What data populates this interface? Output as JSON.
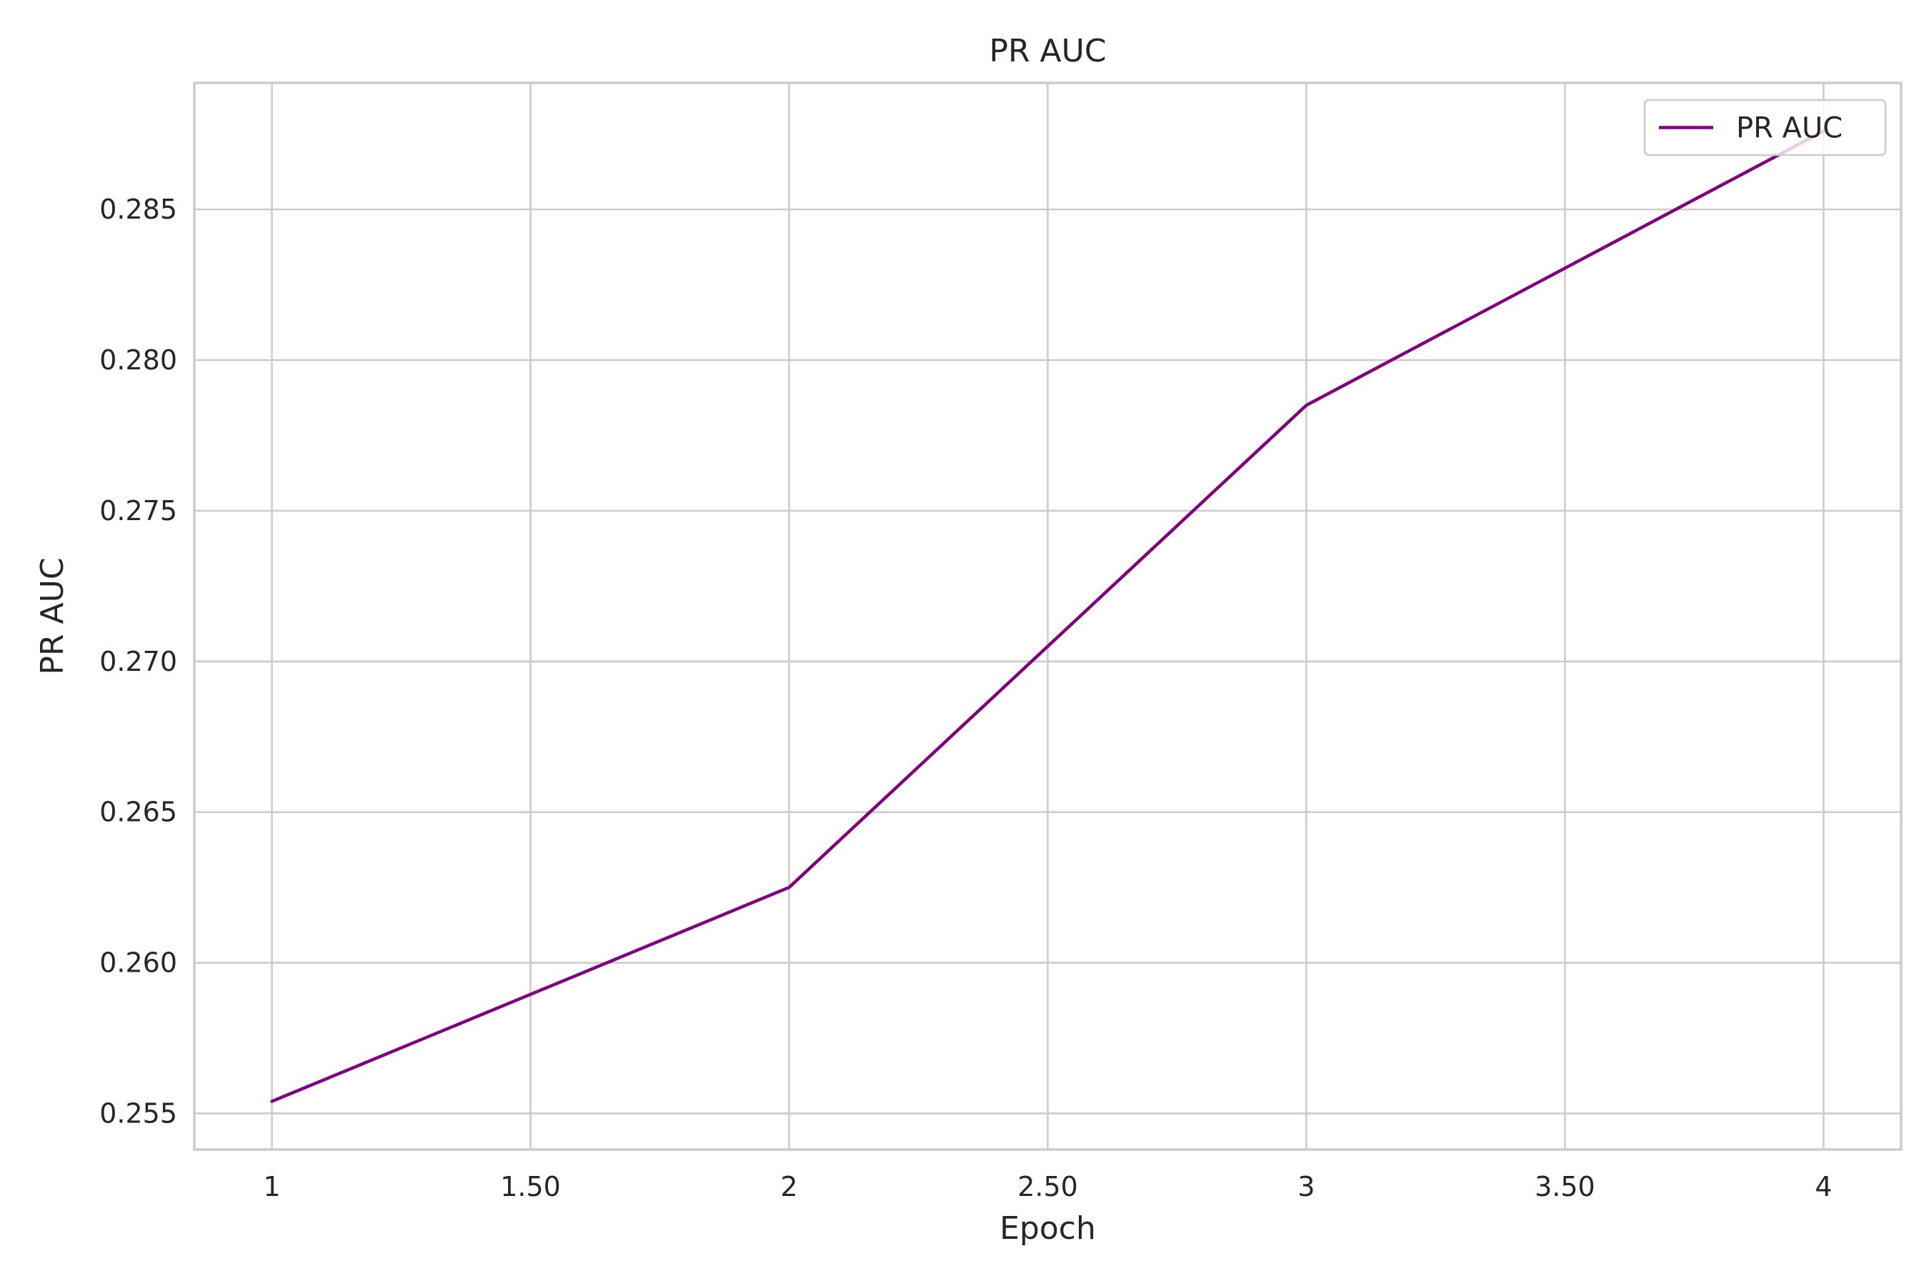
{
  "chart_data": {
    "type": "line",
    "title": "PR AUC",
    "xlabel": "Epoch",
    "ylabel": "PR AUC",
    "xlim": [
      0.85,
      4.15
    ],
    "ylim": [
      0.2538,
      0.2892
    ],
    "x_ticks": [
      1,
      1.5,
      2,
      2.5,
      3,
      3.5,
      4
    ],
    "x_tick_labels": [
      "1",
      "1.50",
      "2",
      "2.50",
      "3",
      "3.50",
      "4"
    ],
    "y_ticks": [
      0.255,
      0.26,
      0.265,
      0.27,
      0.275,
      0.28,
      0.285
    ],
    "y_tick_labels": [
      "0.255",
      "0.260",
      "0.265",
      "0.270",
      "0.275",
      "0.280",
      "0.285"
    ],
    "grid": true,
    "legend_position": "top-right",
    "series": [
      {
        "name": "PR AUC",
        "color": "#800080",
        "x": [
          1,
          2,
          3,
          4
        ],
        "y": [
          0.2554,
          0.2625,
          0.2785,
          0.2876
        ]
      }
    ]
  }
}
